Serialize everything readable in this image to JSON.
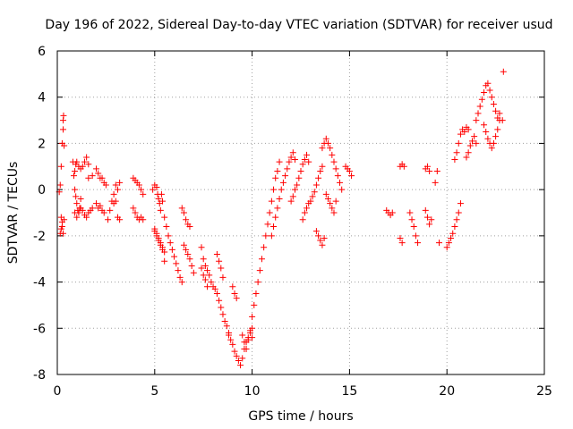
{
  "chart_data": {
    "type": "scatter",
    "title": "Day 196 of 2022, Sidereal Day-to-day VTEC variation (SDTVAR) for receiver usud",
    "xlabel": "GPS time / hours",
    "ylabel": "SDTVAR / TECUs",
    "xlim": [
      0,
      25
    ],
    "ylim": [
      -8,
      6
    ],
    "xticks": [
      "0",
      "5",
      "10",
      "15",
      "20",
      "25"
    ],
    "yticks": [
      "-8",
      "-6",
      "-4",
      "-2",
      "0",
      "2",
      "4",
      "6"
    ],
    "xtick_values": [
      0,
      5,
      10,
      15,
      20,
      25
    ],
    "ytick_values": [
      -8,
      -6,
      -4,
      -2,
      0,
      2,
      4,
      6
    ],
    "grid": true,
    "marker": "+",
    "marker_color": "#ff0000",
    "series": [
      {
        "x": [
          0.1,
          0.15,
          0.2,
          0.25,
          0.3,
          0.3,
          0.32,
          0.35,
          0.2,
          0.25,
          0.3,
          0.35,
          0.15,
          0.2,
          0.25,
          0.8,
          0.85,
          0.9,
          0.95,
          1.0,
          1.05,
          1.1,
          1.15,
          1.2,
          0.9,
          0.95,
          1.0,
          1.1,
          1.2,
          1.3,
          1.4,
          1.5,
          1.6,
          0.9,
          1.0,
          1.1,
          1.2,
          1.3,
          1.4,
          1.5,
          1.6,
          1.7,
          1.8,
          1.6,
          1.8,
          2.0,
          2.1,
          2.2,
          2.3,
          2.4,
          2.5,
          2.0,
          2.1,
          2.2,
          2.3,
          2.4,
          2.6,
          2.7,
          2.8,
          2.9,
          3.0,
          3.1,
          3.2,
          2.9,
          3.0,
          3.1,
          3.2,
          3.9,
          4.0,
          4.1,
          4.2,
          4.3,
          4.4,
          3.9,
          4.0,
          4.1,
          4.2,
          4.3,
          4.4,
          4.9,
          5.0,
          5.1,
          5.15,
          5.2,
          5.25,
          5.3,
          5.35,
          5.4,
          5.0,
          5.1,
          5.2,
          5.3,
          5.4,
          5.5,
          5.0,
          5.1,
          5.2,
          5.3,
          5.4,
          5.5,
          5.5,
          5.6,
          5.7,
          5.8,
          5.9,
          6.0,
          6.1,
          6.2,
          6.3,
          6.4,
          6.5,
          6.6,
          6.7,
          6.8,
          6.9,
          7.0,
          6.4,
          6.5,
          6.6,
          6.7,
          6.8,
          7.4,
          7.5,
          7.6,
          7.7,
          7.8,
          7.9,
          8.0,
          8.1,
          8.2,
          8.3,
          8.4,
          8.5,
          8.6,
          8.7,
          8.8,
          7.4,
          7.5,
          7.6,
          7.7,
          8.2,
          8.3,
          8.4,
          8.5,
          8.8,
          8.9,
          9.0,
          9.1,
          9.2,
          9.3,
          9.4,
          9.5,
          9.6,
          9.7,
          9.8,
          9.9,
          10.0,
          9.5,
          9.6,
          9.7,
          9.8,
          9.9,
          10.0,
          9.0,
          9.1,
          9.2,
          10.0,
          10.1,
          10.2,
          10.3,
          10.4,
          10.5,
          10.6,
          10.7,
          10.8,
          10.9,
          11.0,
          11.1,
          11.2,
          11.3,
          11.4,
          11.0,
          11.1,
          11.2,
          11.3,
          11.4,
          11.5,
          11.6,
          11.7,
          11.8,
          11.9,
          12.0,
          12.1,
          12.2,
          12.0,
          12.1,
          12.2,
          12.3,
          12.4,
          12.5,
          12.6,
          12.7,
          12.8,
          12.9,
          12.6,
          12.7,
          12.8,
          12.9,
          13.0,
          13.1,
          13.2,
          13.3,
          13.4,
          13.5,
          13.6,
          13.3,
          13.4,
          13.5,
          13.6,
          13.7,
          13.6,
          13.7,
          13.8,
          13.9,
          14.0,
          14.1,
          14.2,
          14.3,
          14.4,
          14.5,
          14.6,
          13.8,
          13.9,
          14.0,
          14.1,
          14.2,
          14.3,
          14.8,
          14.9,
          15.0,
          15.1,
          16.9,
          17.0,
          17.1,
          17.2,
          17.6,
          17.7,
          17.8,
          17.6,
          17.7,
          18.1,
          18.2,
          18.3,
          18.4,
          18.5,
          18.9,
          19.0,
          19.1,
          19.2,
          18.9,
          19.0,
          19.1,
          19.4,
          19.5,
          19.6,
          20.0,
          20.1,
          20.2,
          20.3,
          20.4,
          20.5,
          20.6,
          20.7,
          20.4,
          20.5,
          20.6,
          20.7,
          20.8,
          20.9,
          21.0,
          21.1,
          21.0,
          21.1,
          21.2,
          21.3,
          21.4,
          21.5,
          21.5,
          21.6,
          21.7,
          21.8,
          21.9,
          22.0,
          22.1,
          22.2,
          22.3,
          22.4,
          22.5,
          22.6,
          22.7,
          21.9,
          22.0,
          22.1,
          22.2,
          22.3,
          22.4,
          22.5,
          22.6,
          22.7,
          22.9,
          22.85
        ],
        "y": [
          -0.1,
          0.2,
          1.0,
          2.0,
          3.0,
          2.6,
          3.2,
          1.9,
          -1.2,
          -1.6,
          -1.9,
          -1.3,
          -1.9,
          -1.7,
          -1.4,
          1.2,
          0.6,
          0.0,
          -0.3,
          -0.6,
          -0.9,
          -1.0,
          -0.8,
          -0.4,
          0.8,
          1.1,
          1.2,
          1.0,
          0.9,
          1.0,
          1.2,
          1.4,
          1.1,
          -1.0,
          -1.2,
          -1.0,
          -0.8,
          -0.9,
          -1.1,
          -1.2,
          -1.0,
          -0.9,
          -0.8,
          0.5,
          0.6,
          0.9,
          0.7,
          0.5,
          0.5,
          0.3,
          0.2,
          -0.6,
          -0.8,
          -0.7,
          -0.9,
          -1.0,
          -1.3,
          -0.9,
          -0.5,
          -0.2,
          0.2,
          0.0,
          0.3,
          -0.6,
          -0.5,
          -1.2,
          -1.3,
          0.5,
          0.4,
          0.3,
          0.2,
          0.0,
          -0.2,
          -0.8,
          -1.0,
          -1.2,
          -1.3,
          -1.2,
          -1.3,
          0.0,
          0.2,
          0.1,
          -0.2,
          -0.4,
          -0.6,
          -0.9,
          -0.2,
          -0.5,
          -1.7,
          -2.0,
          -2.2,
          -2.4,
          -2.6,
          -3.1,
          -1.8,
          -1.9,
          -2.1,
          -2.3,
          -2.5,
          -2.7,
          -1.2,
          -1.6,
          -2.0,
          -2.3,
          -2.6,
          -2.9,
          -3.2,
          -3.5,
          -3.8,
          -4.0,
          -2.4,
          -2.6,
          -2.8,
          -3.0,
          -3.3,
          -3.6,
          -0.8,
          -1.0,
          -1.3,
          -1.5,
          -1.6,
          -2.5,
          -3.0,
          -3.3,
          -3.5,
          -3.7,
          -4.0,
          -4.2,
          -4.3,
          -4.5,
          -4.8,
          -5.1,
          -5.4,
          -5.7,
          -5.9,
          -6.2,
          -3.4,
          -3.7,
          -3.9,
          -4.2,
          -2.8,
          -3.1,
          -3.4,
          -3.8,
          -6.3,
          -6.5,
          -6.7,
          -7.0,
          -7.2,
          -7.4,
          -7.6,
          -7.3,
          -6.9,
          -6.6,
          -6.4,
          -6.1,
          -6.0,
          -6.3,
          -6.6,
          -6.9,
          -6.5,
          -6.2,
          -6.4,
          -4.2,
          -4.5,
          -4.7,
          -5.5,
          -5.0,
          -4.5,
          -4.0,
          -3.5,
          -3.0,
          -2.5,
          -2.0,
          -1.5,
          -1.0,
          -0.5,
          0.0,
          0.5,
          0.8,
          1.2,
          -2.0,
          -1.6,
          -1.2,
          -0.8,
          -0.4,
          0.0,
          0.3,
          0.6,
          0.9,
          1.2,
          1.4,
          1.6,
          1.3,
          -0.5,
          -0.3,
          0.0,
          0.2,
          0.5,
          0.8,
          1.1,
          1.3,
          1.5,
          1.2,
          -1.3,
          -1.0,
          -0.8,
          -0.6,
          -0.5,
          -0.3,
          -0.1,
          0.2,
          0.5,
          0.8,
          1.0,
          -1.8,
          -2.0,
          -2.2,
          -2.4,
          -2.1,
          1.8,
          2.0,
          2.2,
          2.0,
          1.8,
          1.5,
          1.2,
          0.9,
          0.6,
          0.3,
          0.0,
          -0.2,
          -0.4,
          -0.6,
          -0.8,
          -1.0,
          -0.5,
          1.0,
          0.9,
          0.8,
          0.6,
          -0.9,
          -1.0,
          -1.1,
          -1.0,
          1.0,
          1.1,
          1.0,
          -2.1,
          -2.3,
          -1.0,
          -1.3,
          -1.6,
          -2.0,
          -2.3,
          -0.9,
          -1.2,
          -1.5,
          -1.3,
          0.9,
          1.0,
          0.8,
          0.3,
          0.8,
          -2.3,
          -2.5,
          -2.3,
          -2.1,
          -1.9,
          -1.6,
          -1.3,
          -1.0,
          -0.6,
          1.3,
          1.6,
          2.0,
          2.4,
          2.6,
          2.5,
          2.7,
          2.6,
          1.4,
          1.6,
          1.9,
          2.1,
          2.3,
          2.0,
          3.0,
          3.3,
          3.6,
          3.9,
          4.2,
          4.5,
          4.6,
          4.3,
          4.0,
          3.7,
          3.4,
          3.1,
          3.3,
          2.8,
          2.5,
          2.2,
          2.0,
          1.8,
          2.0,
          2.3,
          2.6,
          3.0,
          5.1,
          3.0
        ]
      }
    ]
  }
}
